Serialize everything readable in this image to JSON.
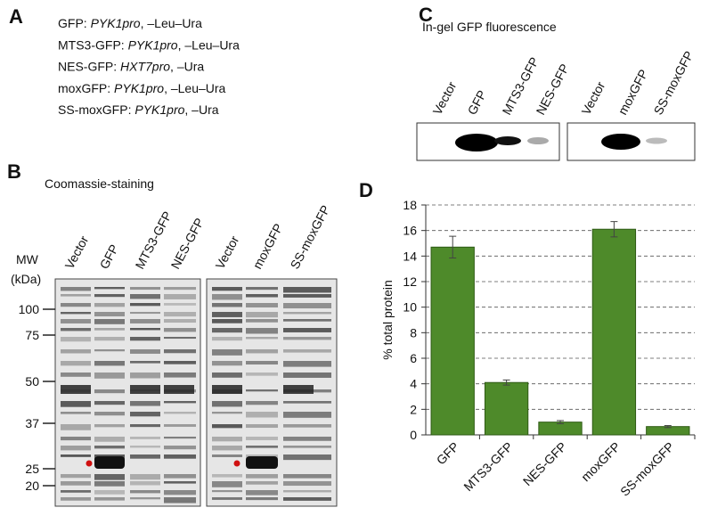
{
  "panel_a": {
    "label": "A",
    "lines": [
      {
        "name": "GFP: ",
        "promoter": "PYK1pro",
        "medium": ", –Leu–Ura"
      },
      {
        "name": "MTS3-GFP: ",
        "promoter": "PYK1pro",
        "medium": ", –Leu–Ura"
      },
      {
        "name": "NES-GFP: ",
        "promoter": "HXT7pro",
        "medium": ", –Ura"
      },
      {
        "name": "moxGFP: ",
        "promoter": "PYK1pro",
        "medium": ", –Leu–Ura"
      },
      {
        "name": "SS-moxGFP: ",
        "promoter": "PYK1pro",
        "medium": ", –Ura"
      }
    ]
  },
  "panel_b": {
    "label": "B",
    "title": "Coomassie-staining",
    "lanes": [
      "Vector",
      "GFP",
      "MTS3-GFP",
      "NES-GFP",
      "Vector",
      "moxGFP",
      "SS-moxGFP"
    ],
    "mw_title": "MW",
    "mw_unit": "(kDa)",
    "mw_markers": [
      100,
      75,
      50,
      37,
      25,
      20
    ]
  },
  "panel_c": {
    "label": "C",
    "title": "In-gel GFP fluorescence",
    "lanes": [
      "Vector",
      "GFP",
      "MTS3-GFP",
      "NES-GFP",
      "Vector",
      "moxGFP",
      "SS-moxGFP"
    ]
  },
  "chart_data": {
    "type": "bar",
    "panel_label": "D",
    "categories": [
      "GFP",
      "MTS3-GFP",
      "NES-GFP",
      "moxGFP",
      "SS-moxGFP"
    ],
    "values": [
      14.7,
      4.1,
      1.0,
      16.1,
      0.65
    ],
    "errors": [
      0.85,
      0.2,
      0.12,
      0.6,
      0.08
    ],
    "ylabel": "% total protein",
    "ylim": [
      0,
      18
    ],
    "yticks": [
      0,
      2,
      4,
      6,
      8,
      10,
      12,
      14,
      16,
      18
    ],
    "grid": true,
    "color": "#4e8a2a"
  }
}
